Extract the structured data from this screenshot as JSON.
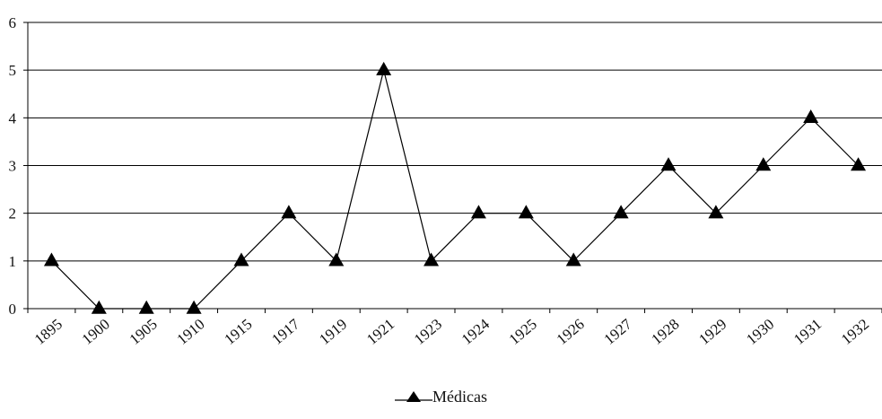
{
  "chart_data": {
    "type": "line",
    "categories": [
      "1895",
      "1900",
      "1905",
      "1910",
      "1915",
      "1917",
      "1919",
      "1921",
      "1923",
      "1924",
      "1925",
      "1926",
      "1927",
      "1928",
      "1929",
      "1930",
      "1931",
      "1932"
    ],
    "series": [
      {
        "name": "Médicas",
        "values": [
          1,
          0,
          0,
          0,
          1,
          2,
          1,
          5,
          1,
          2,
          2,
          1,
          2,
          3,
          2,
          3,
          4,
          3
        ],
        "color": "#000000",
        "marker": "triangle"
      }
    ],
    "yticks": [
      0,
      1,
      2,
      3,
      4,
      5,
      6
    ],
    "ylim": [
      0,
      6
    ],
    "grid": "horizontal",
    "legend_position": "bottom-center",
    "title": "",
    "xlabel": "",
    "ylabel": ""
  }
}
